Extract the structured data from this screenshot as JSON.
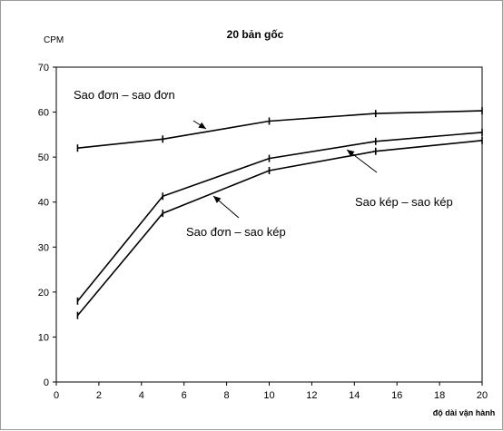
{
  "chart_data": {
    "type": "line",
    "title": "20 bản gốc",
    "ylabel": "CPM",
    "xlabel": "độ dài vận hành",
    "xlim": [
      0,
      20
    ],
    "ylim": [
      0,
      70
    ],
    "xticks": [
      0,
      2,
      4,
      6,
      8,
      10,
      12,
      14,
      16,
      18,
      20
    ],
    "yticks": [
      0,
      10,
      20,
      30,
      40,
      50,
      60,
      70
    ],
    "grid": false,
    "legend": "none",
    "series": [
      {
        "name": "Sao đơn – sao đơn",
        "x": [
          1,
          5,
          10,
          15,
          20
        ],
        "y": [
          52.0,
          54.0,
          58.0,
          59.7,
          60.3
        ]
      },
      {
        "name": "Sao kép – sao kép",
        "x": [
          1,
          5,
          10,
          15,
          20
        ],
        "y": [
          18.0,
          41.3,
          49.7,
          53.5,
          55.5
        ]
      },
      {
        "name": "Sao đơn – sao kép",
        "x": [
          1,
          5,
          10,
          15,
          20
        ],
        "y": [
          14.8,
          37.5,
          47.0,
          51.3,
          53.7
        ]
      }
    ]
  },
  "colors": {
    "line": "#000000",
    "frame": "#9a9a9a",
    "axis": "#000000"
  }
}
